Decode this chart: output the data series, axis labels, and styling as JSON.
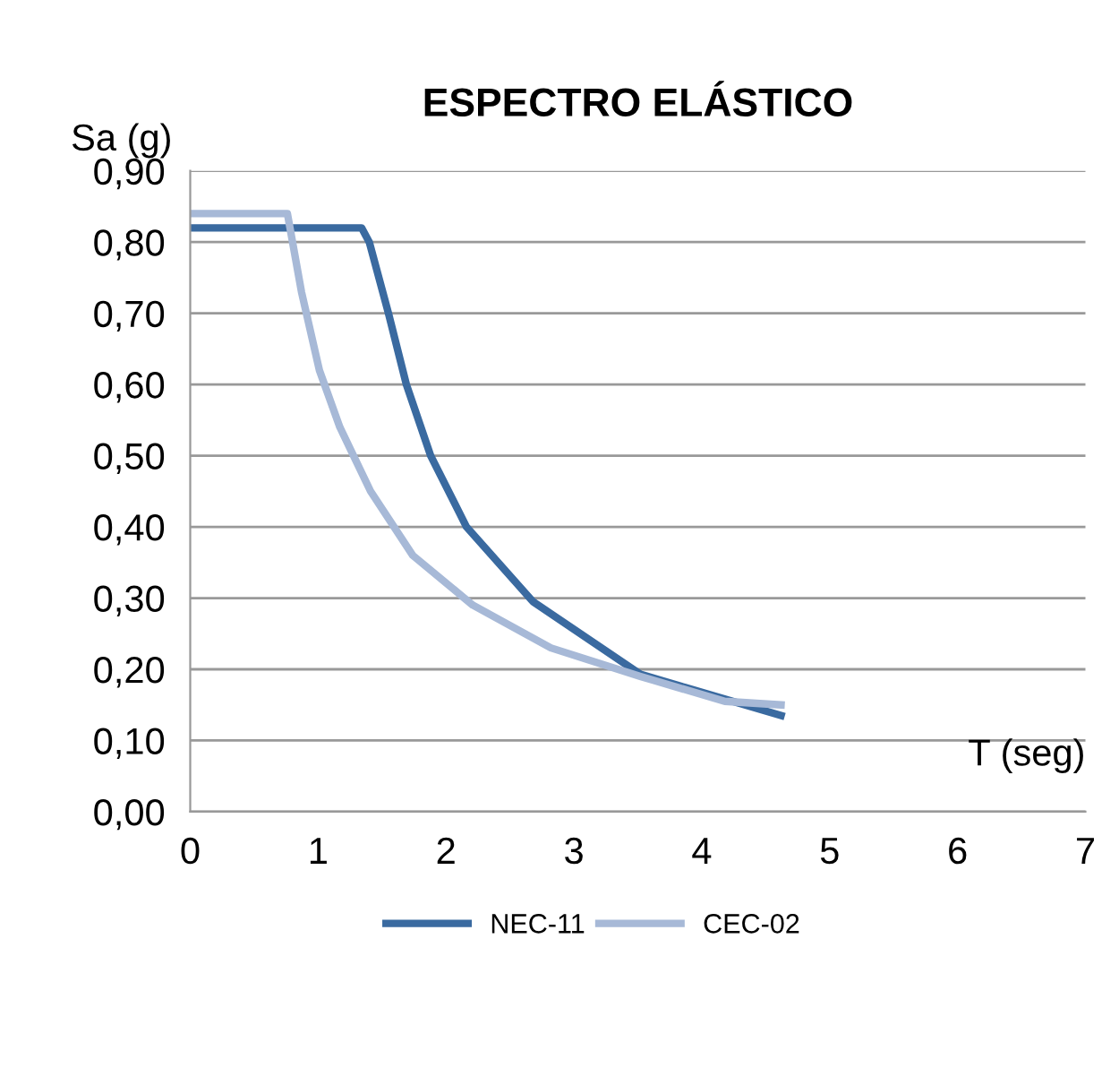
{
  "chart_data": {
    "type": "line",
    "title": "ESPECTRO ELÁSTICO",
    "xlabel": "T (seg)",
    "ylabel": "Sa (g)",
    "xlim": [
      0,
      7
    ],
    "xticks": [
      0,
      1,
      2,
      3,
      4,
      5,
      6,
      7
    ],
    "ylim": [
      0,
      0.9
    ],
    "yticks": [
      {
        "value": 0,
        "label": "0,00"
      },
      {
        "value": 0.1,
        "label": "0,10"
      },
      {
        "value": 0.2,
        "label": "0,20"
      },
      {
        "value": 0.3,
        "label": "0,30"
      },
      {
        "value": 0.4,
        "label": "0,40"
      },
      {
        "value": 0.5,
        "label": "0,50"
      },
      {
        "value": 0.6,
        "label": "0,60"
      },
      {
        "value": 0.7,
        "label": "0,70"
      },
      {
        "value": 0.8,
        "label": "0,80"
      },
      {
        "value": 0.9,
        "label": "0,90"
      }
    ],
    "grid": "y",
    "legend": "bottom",
    "marker": "none",
    "line_style": "solid",
    "series": [
      {
        "name": "NEC-11",
        "color": "#3a6aa0",
        "x": [
          0,
          1.34,
          1.4,
          1.55,
          1.69,
          1.88,
          2.16,
          2.68,
          3.52,
          4.62
        ],
        "values": [
          0.82,
          0.82,
          0.8,
          0.7,
          0.6,
          0.5,
          0.4,
          0.295,
          0.193,
          0.135
        ]
      },
      {
        "name": "CEC-02",
        "color": "#a7b9d7",
        "x": [
          0,
          0.76,
          0.87,
          1.01,
          1.17,
          1.41,
          1.74,
          2.21,
          2.82,
          3.52,
          4.18,
          4.62
        ],
        "values": [
          0.84,
          0.84,
          0.73,
          0.62,
          0.54,
          0.45,
          0.36,
          0.29,
          0.23,
          0.19,
          0.155,
          0.15
        ]
      }
    ]
  }
}
